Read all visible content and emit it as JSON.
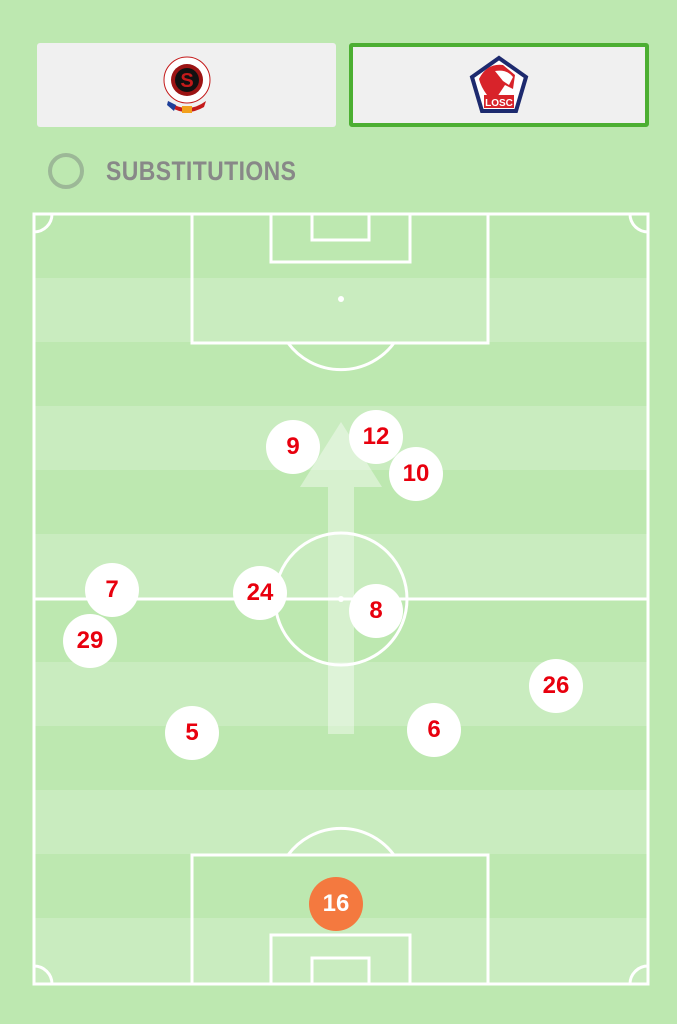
{
  "teams": {
    "home": {
      "name": "AC Sparta Praha",
      "logo_text": "AC SPARTA PRAHA FOTBAL",
      "selected": false
    },
    "away": {
      "name": "LOSC",
      "logo_text": "LOSC",
      "selected": true
    }
  },
  "substitutions": {
    "label": "SUBSTITUTIONS",
    "checked": false
  },
  "colors": {
    "pitch_dark": "#bde8b0",
    "pitch_light": "#c9ecbf",
    "player_text": "#e8000e",
    "goalkeeper": "#f4793f",
    "selected_border": "#4caf32"
  },
  "players": [
    {
      "number": "9"
    },
    {
      "number": "12"
    },
    {
      "number": "10"
    },
    {
      "number": "7"
    },
    {
      "number": "24"
    },
    {
      "number": "8"
    },
    {
      "number": "29"
    },
    {
      "number": "26"
    },
    {
      "number": "5"
    },
    {
      "number": "6"
    },
    {
      "number": "16",
      "role": "goalkeeper"
    }
  ]
}
